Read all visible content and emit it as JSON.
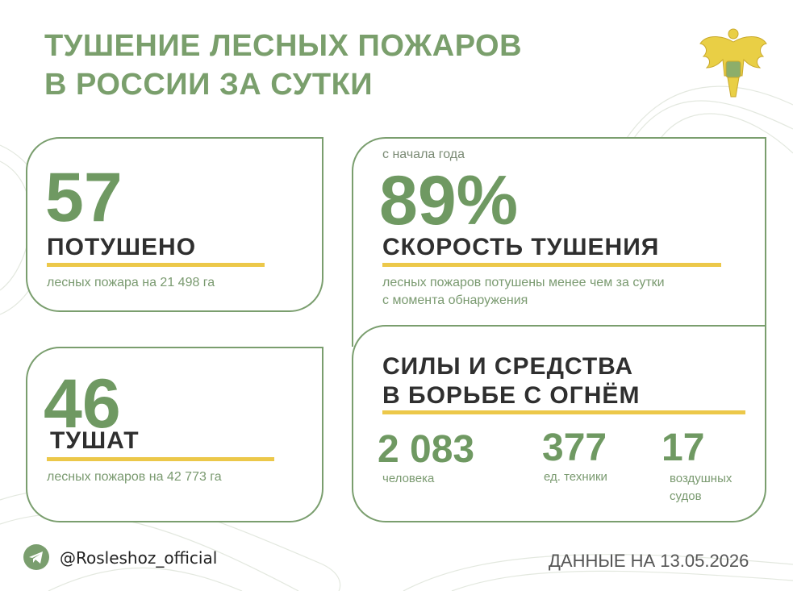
{
  "header": {
    "title_lines": [
      "ТУШЕНИЕ ЛЕСНЫХ ПОЖАРОВ",
      "В РОССИИ ЗА СУТКИ"
    ]
  },
  "cards": [
    {
      "number": "57",
      "label": "ПОТУШЕНО",
      "note": "лесных пожара на 21 498 га"
    },
    {
      "number": "46",
      "label": "ТУШАТ",
      "note": "лесных пожаров на 42 773 га"
    },
    {
      "pre": "с начала года",
      "number": "89%",
      "label": "СКОРОСТЬ ТУШЕНИЯ",
      "note_lines": [
        "лесных пожаров потушены менее чем за сутки",
        "с момента обнаружения"
      ]
    },
    {
      "heading_lines": [
        "СИЛЫ И СРЕДСТВА",
        "В БОРЬБЕ С ОГНЁМ"
      ],
      "stats": [
        {
          "number": "2 083",
          "note_lines": [
            "человека"
          ]
        },
        {
          "number": "377",
          "note_lines": [
            "ед. техники"
          ]
        },
        {
          "number": "17",
          "note_lines": [
            "воздушных",
            "судов"
          ]
        }
      ]
    }
  ],
  "footer": {
    "handle": "@Rosleshoz_official",
    "date": "ДАННЫЕ НА 13.05.2026"
  }
}
